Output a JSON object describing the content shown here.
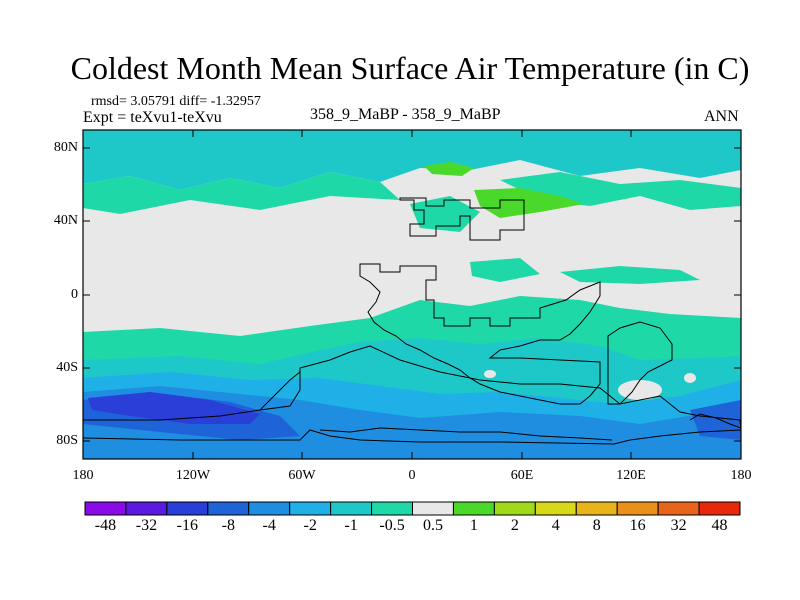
{
  "title": "Coldest Month Mean Surface Air Temperature (in C)",
  "stats_line": "rmsd= 3.05791 diff= -1.32957",
  "expt_line": "Expt = teXvu1-teXvu",
  "center_label": "358_9_MaBP - 358_9_MaBP",
  "season_label": "ANN",
  "lat_labels": [
    "80N",
    "40N",
    "0",
    "40S",
    "80S"
  ],
  "lon_labels": [
    "180",
    "120W",
    "60W",
    "0",
    "60E",
    "120E",
    "180"
  ],
  "colorbar": {
    "colors": [
      "#8a0ae8",
      "#5a1ae0",
      "#2a3fd8",
      "#1e64d8",
      "#1f8de0",
      "#1fb0e8",
      "#1fc8c8",
      "#1fd8a8",
      "#e8e8e8",
      "#4ad82a",
      "#a0d81a",
      "#d8d81a",
      "#e8b41a",
      "#e8901a",
      "#e8641a",
      "#e8280a"
    ],
    "labels": [
      "-48",
      "-32",
      "-16",
      "-8",
      "-4",
      "-2",
      "-1",
      "-0.5",
      "0.5",
      "1",
      "2",
      "4",
      "8",
      "16",
      "32",
      "48"
    ]
  },
  "chart_data": {
    "type": "heatmap",
    "title": "Coldest Month Mean Surface Air Temperature (in C)",
    "variable": "difference teXvu1 - teXvu",
    "units": "C",
    "lon_range": [
      -180,
      180
    ],
    "lat_range": [
      -90,
      90
    ],
    "levels": [
      -48,
      -32,
      -16,
      -8,
      -4,
      -2,
      -1,
      -0.5,
      0.5,
      1,
      2,
      4,
      8,
      16,
      32,
      48
    ],
    "rmsd": 3.05791,
    "diff": -1.32957
  }
}
